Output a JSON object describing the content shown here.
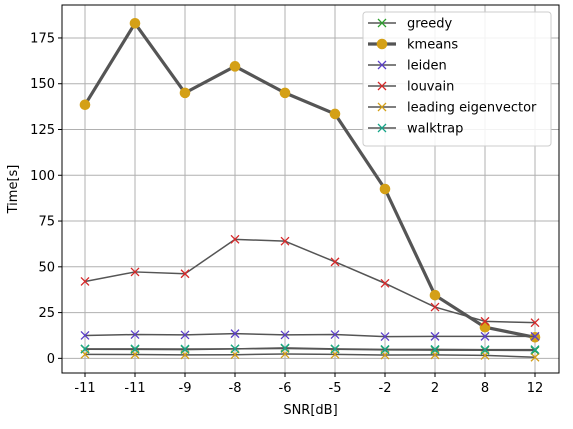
{
  "chart_data": {
    "type": "line",
    "title": "",
    "xlabel": "SNR[dB]",
    "ylabel": "Time[s]",
    "categories": [
      "-11",
      "-11",
      "-9",
      "-8",
      "-6",
      "-5",
      "-2",
      "2",
      "8",
      "12"
    ],
    "ylim": [
      -8,
      193
    ],
    "yticks": [
      0,
      25,
      50,
      75,
      100,
      125,
      150,
      175
    ],
    "grid": true,
    "legend_position": "top-right",
    "series": [
      {
        "name": "greedy",
        "color": "#2ca02c",
        "marker": "x",
        "line_width": 1.5,
        "values": [
          5.0,
          4.9,
          4.8,
          5.2,
          5.4,
          5.0,
          4.6,
          4.5,
          4.4,
          4.3
        ]
      },
      {
        "name": "kmeans",
        "color": "#d4a017",
        "marker": "o",
        "line_width": 3.2,
        "values": [
          138.5,
          183.0,
          145.0,
          159.5,
          145.0,
          133.5,
          92.5,
          34.5,
          17.0,
          11.5
        ]
      },
      {
        "name": "leiden",
        "color": "#5b3fc9",
        "marker": "x",
        "line_width": 1.5,
        "values": [
          12.5,
          13.0,
          12.8,
          13.5,
          12.8,
          13.0,
          11.9,
          12.0,
          12.0,
          12.0
        ]
      },
      {
        "name": "louvain",
        "color": "#d62728",
        "marker": "x",
        "line_width": 1.5,
        "values": [
          42.0,
          47.2,
          46.2,
          65.0,
          64.0,
          52.7,
          41.0,
          28.0,
          20.2,
          19.5
        ]
      },
      {
        "name": "leading eigenvector",
        "color": "#d4a017",
        "marker": "x",
        "line_width": 1.5,
        "values": [
          2.2,
          2.1,
          1.9,
          2.0,
          2.4,
          2.2,
          1.8,
          1.9,
          1.6,
          0.6
        ]
      },
      {
        "name": "walktrap",
        "color": "#17a589",
        "marker": "x",
        "line_width": 1.5,
        "values": [
          5.2,
          5.2,
          5.1,
          5.2,
          5.7,
          5.2,
          4.9,
          4.9,
          4.8,
          4.8
        ]
      }
    ]
  }
}
